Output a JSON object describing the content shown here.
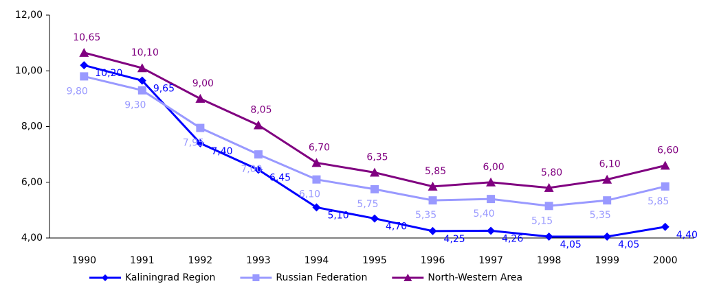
{
  "chart_data": {
    "type": "line",
    "categories": [
      "1990",
      "1991",
      "1992",
      "1993",
      "1994",
      "1995",
      "1996",
      "1997",
      "1998",
      "1999",
      "2000"
    ],
    "ylim": [
      4,
      12
    ],
    "yticks": [
      {
        "value": 4,
        "label": "4,00"
      },
      {
        "value": 6,
        "label": "6,00"
      },
      {
        "value": 8,
        "label": "8,00"
      },
      {
        "value": 10,
        "label": "10,00"
      },
      {
        "value": 12,
        "label": "12,00"
      }
    ],
    "grid": false,
    "legend": "bottom",
    "series": [
      {
        "name": "Kaliningrad Region",
        "color": "#0000ff",
        "marker": "diamond",
        "values": [
          10.2,
          9.65,
          7.4,
          6.45,
          5.1,
          4.7,
          4.25,
          4.26,
          4.05,
          4.05,
          4.4
        ],
        "value_labels": [
          "10,20",
          "9,65",
          "7,40",
          "6,45",
          "5,10",
          "4,70",
          "4,25",
          "4,26",
          "4,05",
          "4,05",
          "4,40"
        ]
      },
      {
        "name": "Russian Federation",
        "color": "#9999ff",
        "marker": "square",
        "values": [
          9.8,
          9.3,
          7.95,
          7.0,
          6.1,
          5.75,
          5.35,
          5.4,
          5.15,
          5.35,
          5.85
        ],
        "value_labels": [
          "9,80",
          "9,30",
          "7,95",
          "7,00",
          "6,10",
          "5,75",
          "5,35",
          "5,40",
          "5,15",
          "5,35",
          "5,85"
        ]
      },
      {
        "name": "North-Western Area",
        "color": "#800080",
        "marker": "triangle",
        "values": [
          10.65,
          10.1,
          9.0,
          8.05,
          6.7,
          6.35,
          5.85,
          6.0,
          5.8,
          6.1,
          6.6
        ],
        "value_labels": [
          "10,65",
          "10,10",
          "9,00",
          "8,05",
          "6,70",
          "6,35",
          "5,85",
          "6,00",
          "5,80",
          "6,10",
          "6,60"
        ]
      }
    ]
  }
}
